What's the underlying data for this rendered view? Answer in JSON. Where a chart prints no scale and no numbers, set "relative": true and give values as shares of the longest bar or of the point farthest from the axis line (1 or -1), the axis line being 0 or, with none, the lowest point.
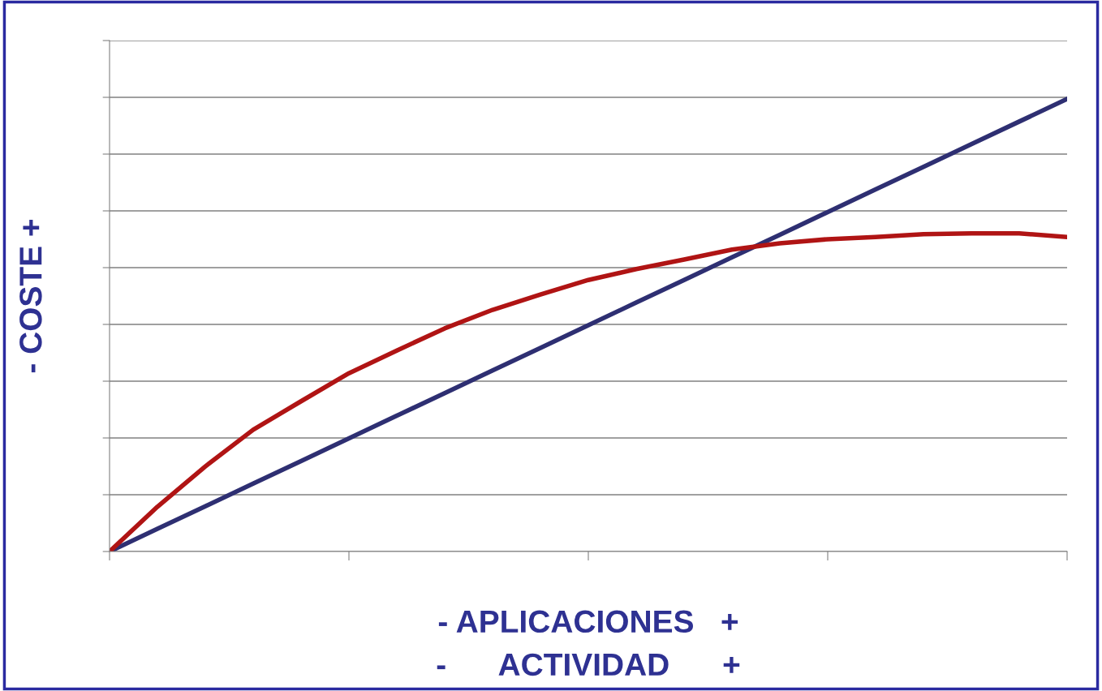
{
  "chart_data": {
    "type": "line",
    "relative": true,
    "xlabel": "- APLICACIONES   +\n-      ACTIVIDAD      +",
    "ylabel": "- COSTE +",
    "grid": "y",
    "marker": "none",
    "line_style": "solid",
    "categories": [
      null,
      null,
      null,
      null,
      null,
      null,
      null,
      null,
      null,
      null,
      null,
      null,
      null,
      null,
      null,
      null,
      null,
      null,
      null,
      null,
      null
    ],
    "series": [
      {
        "color": "#2e2f72",
        "values": [
          0,
          0.05,
          0.1,
          0.15,
          0.2,
          0.25,
          0.3,
          0.35,
          0.4,
          0.45,
          0.5,
          0.55,
          0.6,
          0.65,
          0.7,
          0.75,
          0.8,
          0.85,
          0.9,
          0.95,
          1
        ]
      },
      {
        "color": "#b01414",
        "values": [
          0,
          0.099,
          0.188,
          0.269,
          0.332,
          0.394,
          0.444,
          0.493,
          0.534,
          0.568,
          0.6,
          0.624,
          0.645,
          0.667,
          0.681,
          0.69,
          0.695,
          0.701,
          0.703,
          0.703,
          0.695
        ]
      }
    ]
  }
}
